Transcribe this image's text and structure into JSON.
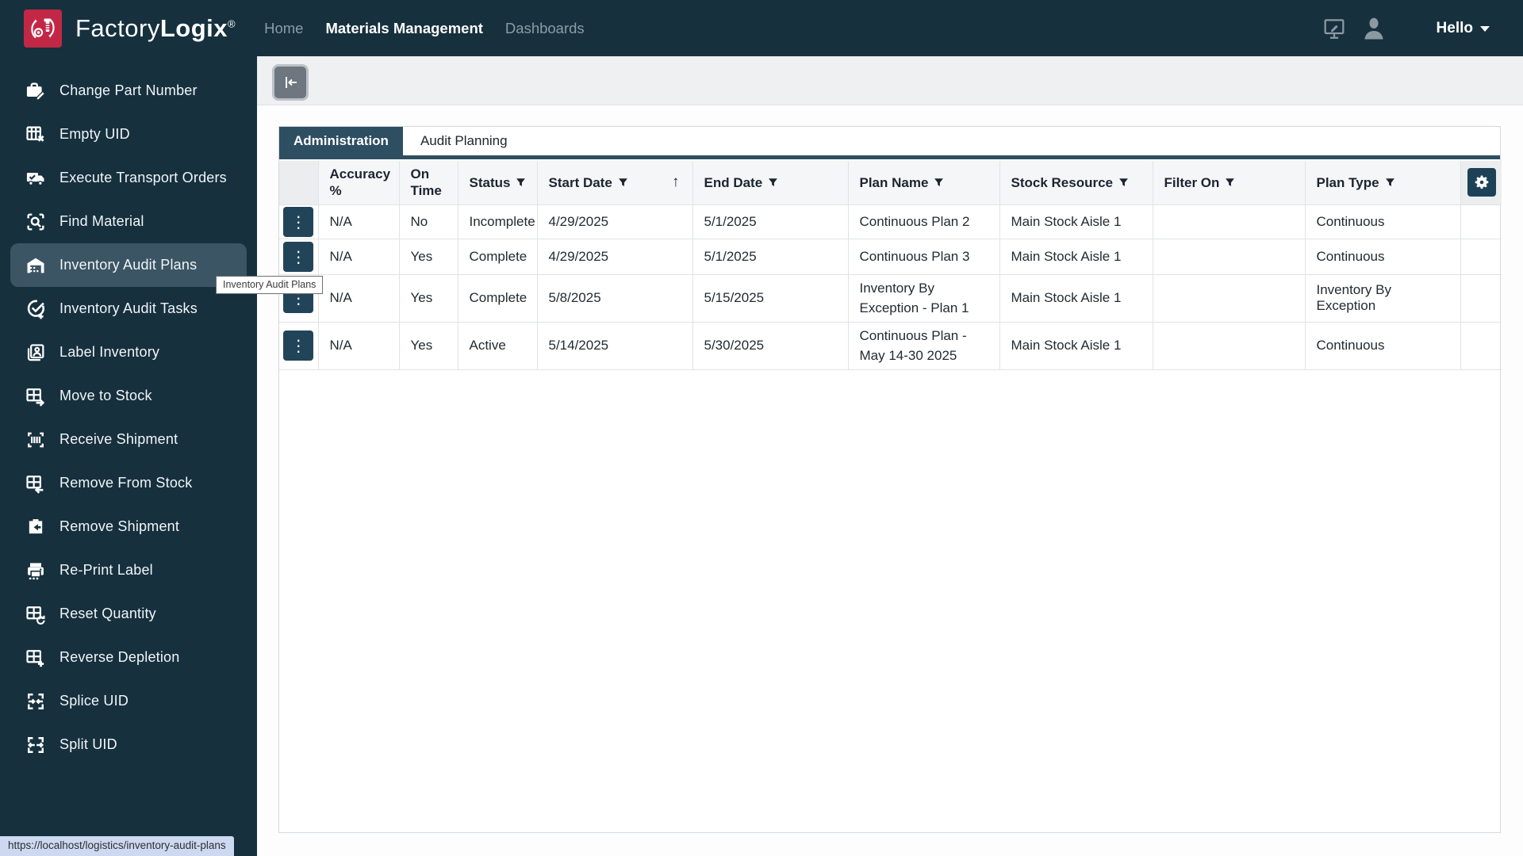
{
  "brand": {
    "name_thin": "Factory",
    "name_bold": "Logix",
    "registered": "®"
  },
  "top_nav": {
    "items": [
      {
        "label": "Home",
        "active": false
      },
      {
        "label": "Materials Management",
        "active": true
      },
      {
        "label": "Dashboards",
        "active": false
      }
    ],
    "greeting": "Hello"
  },
  "sidebar": {
    "items": [
      {
        "label": "Change Part Number",
        "icon": "briefcase-pencil-icon",
        "selected": false
      },
      {
        "label": "Empty UID",
        "icon": "grid-x-icon",
        "selected": false
      },
      {
        "label": "Execute Transport Orders",
        "icon": "truck-check-icon",
        "selected": false
      },
      {
        "label": "Find Material",
        "icon": "scan-search-icon",
        "selected": false
      },
      {
        "label": "Inventory Audit Plans",
        "icon": "warehouse-icon",
        "selected": true
      },
      {
        "label": "Inventory Audit Tasks",
        "icon": "check-plus-icon",
        "selected": false
      },
      {
        "label": "Label Inventory",
        "icon": "badge-card-icon",
        "selected": false
      },
      {
        "label": "Move to Stock",
        "icon": "grid-arrow-right-icon",
        "selected": false
      },
      {
        "label": "Receive Shipment",
        "icon": "scan-barcode-icon",
        "selected": false
      },
      {
        "label": "Remove From Stock",
        "icon": "grid-arrow-left-icon",
        "selected": false
      },
      {
        "label": "Remove Shipment",
        "icon": "tag-arrow-left-icon",
        "selected": false
      },
      {
        "label": "Re-Print Label",
        "icon": "printer-icon",
        "selected": false
      },
      {
        "label": "Reset Quantity",
        "icon": "grid-refresh-icon",
        "selected": false
      },
      {
        "label": "Reverse Depletion",
        "icon": "grid-plus-icon",
        "selected": false
      },
      {
        "label": "Splice UID",
        "icon": "arrows-merge-icon",
        "selected": false
      },
      {
        "label": "Split UID",
        "icon": "arrows-split-icon",
        "selected": false
      }
    ]
  },
  "tooltip": {
    "text": "Inventory Audit Plans"
  },
  "tabs": [
    {
      "label": "Administration",
      "active": true
    },
    {
      "label": "Audit Planning",
      "active": false
    }
  ],
  "table": {
    "columns": [
      {
        "label": "",
        "filter": false
      },
      {
        "label": "Accuracy %",
        "filter": false
      },
      {
        "label": "On Time",
        "filter": false
      },
      {
        "label": "Status",
        "filter": true
      },
      {
        "label": "Start Date",
        "filter": true,
        "sorted": "asc"
      },
      {
        "label": "End Date",
        "filter": true
      },
      {
        "label": "Plan Name",
        "filter": true
      },
      {
        "label": "Stock Resource",
        "filter": true
      },
      {
        "label": "Filter On",
        "filter": true
      },
      {
        "label": "Plan Type",
        "filter": true
      },
      {
        "label": "",
        "filter": false,
        "gear": true
      }
    ],
    "rows": [
      {
        "accuracy": "N/A",
        "on_time": "No",
        "status": "Incomplete",
        "status_red": true,
        "start_date": "4/29/2025",
        "end_date": "5/1/2025",
        "end_red": true,
        "plan_name": "Continuous Plan 2",
        "stock_resource": "Main Stock Aisle 1",
        "filter_on": "",
        "plan_type": "Continuous"
      },
      {
        "accuracy": "N/A",
        "on_time": "Yes",
        "status": "Complete",
        "status_red": false,
        "start_date": "4/29/2025",
        "end_date": "5/1/2025",
        "end_red": true,
        "plan_name": "Continuous Plan 3",
        "stock_resource": "Main Stock Aisle 1",
        "filter_on": "",
        "plan_type": "Continuous"
      },
      {
        "accuracy": "N/A",
        "on_time": "Yes",
        "status": "Complete",
        "status_red": false,
        "start_date": "5/8/2025",
        "end_date": "5/15/2025",
        "end_red": true,
        "plan_name": "Inventory By Exception - Plan 1",
        "stock_resource": "Main Stock Aisle 1",
        "filter_on": "",
        "plan_type": "Inventory By Exception"
      },
      {
        "accuracy": "N/A",
        "on_time": "Yes",
        "status": "Active",
        "status_red": false,
        "start_date": "5/14/2025",
        "end_date": "5/30/2025",
        "end_red": false,
        "plan_name": "Continuous Plan - May 14-30 2025",
        "stock_resource": "Main Stock Aisle 1",
        "filter_on": "",
        "plan_type": "Continuous"
      }
    ]
  },
  "status_bar": {
    "url": "https://localhost/logistics/inventory-audit-plans"
  },
  "colors": {
    "navy": "#16303e",
    "tab_navy": "#2e4e62",
    "logo_red": "#c22845",
    "alert_red": "#e2404e"
  }
}
